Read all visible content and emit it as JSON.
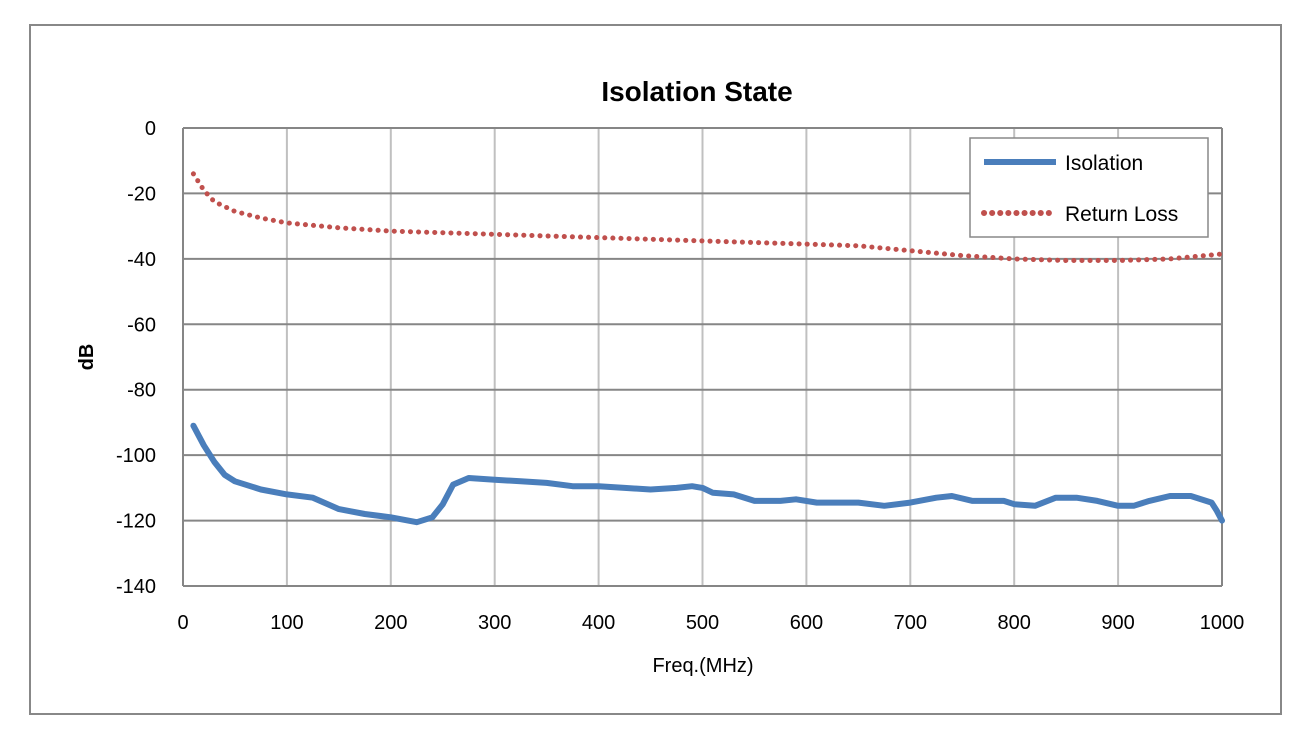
{
  "chart_data": {
    "type": "line",
    "title": "Isolation State",
    "xlabel": "Freq.(MHz)",
    "ylabel": "dB",
    "xlim": [
      0,
      1000
    ],
    "ylim": [
      -140,
      0
    ],
    "xticks": [
      0,
      100,
      200,
      300,
      400,
      500,
      600,
      700,
      800,
      900,
      1000
    ],
    "yticks": [
      0,
      -20,
      -40,
      -60,
      -80,
      -100,
      -120,
      -140
    ],
    "grid": true,
    "legend": "top-right",
    "series": [
      {
        "name": "Isolation",
        "color": "#4a7ebb",
        "style": "solid",
        "x": [
          10,
          20,
          30,
          40,
          50,
          75,
          100,
          125,
          150,
          175,
          200,
          225,
          240,
          250,
          260,
          275,
          300,
          325,
          350,
          375,
          400,
          425,
          450,
          475,
          490,
          500,
          510,
          530,
          550,
          575,
          590,
          610,
          650,
          675,
          700,
          725,
          740,
          760,
          790,
          800,
          820,
          840,
          860,
          880,
          900,
          915,
          930,
          950,
          970,
          990,
          995,
          1000
        ],
        "y": [
          -91,
          -97,
          -102,
          -106,
          -108,
          -110.5,
          -112,
          -113,
          -116.5,
          -118,
          -119,
          -120.5,
          -119,
          -115,
          -109,
          -107,
          -107.5,
          -108,
          -108.5,
          -109.5,
          -109.5,
          -110,
          -110.5,
          -110,
          -109.5,
          -110,
          -111.5,
          -112,
          -114,
          -114,
          -113.5,
          -114.5,
          -114.5,
          -115.5,
          -114.5,
          -113,
          -112.5,
          -114,
          -114,
          -115,
          -115.5,
          -113,
          -113,
          -114,
          -115.5,
          -115.5,
          -114,
          -112.5,
          -112.5,
          -114.5,
          -117,
          -120
        ]
      },
      {
        "name": "Return Loss",
        "color": "#c0504d",
        "style": "dotted",
        "x": [
          10,
          20,
          30,
          50,
          75,
          100,
          150,
          200,
          300,
          400,
          500,
          600,
          650,
          700,
          750,
          800,
          850,
          900,
          950,
          1000
        ],
        "y": [
          -14,
          -19,
          -22.5,
          -25.5,
          -27.5,
          -29,
          -30.5,
          -31.5,
          -32.5,
          -33.5,
          -34.5,
          -35.5,
          -36,
          -37.5,
          -39,
          -40,
          -40.5,
          -40.5,
          -40,
          -38.5
        ]
      }
    ]
  }
}
